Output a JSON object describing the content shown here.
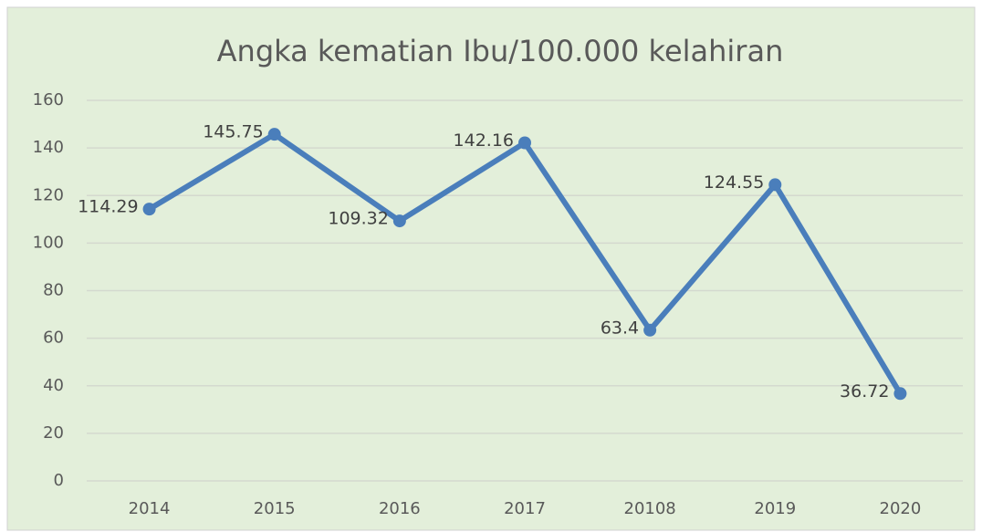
{
  "chart_data": {
    "type": "line",
    "title": "Angka kematian Ibu/100.000 kelahiran",
    "categories": [
      "2014",
      "2015",
      "2016",
      "2017",
      "20108",
      "2019",
      "2020"
    ],
    "series": [
      {
        "name": "Angka kematian Ibu",
        "color": "#4a7ebb",
        "values": [
          114.29,
          145.75,
          109.32,
          142.16,
          63.4,
          124.55,
          36.72
        ]
      }
    ],
    "ylim": [
      0,
      160
    ],
    "yticks": [
      0,
      20,
      40,
      60,
      80,
      100,
      120,
      140,
      160
    ],
    "grid": true,
    "data_labels": true,
    "legend": false
  }
}
